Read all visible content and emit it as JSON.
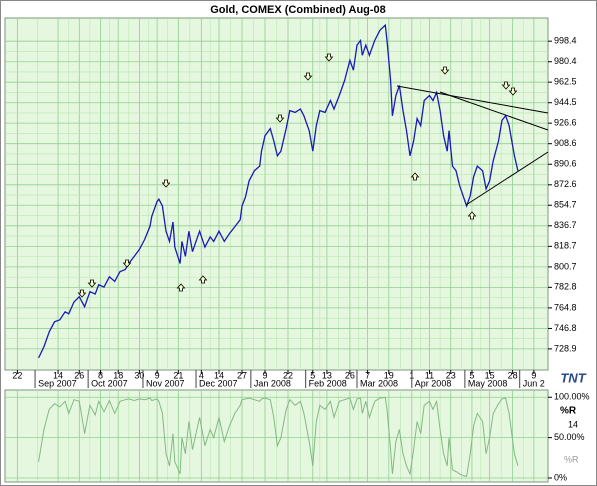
{
  "chart_data": [
    {
      "type": "line",
      "title": "Gold, COMEX (Combined) Aug-08",
      "logo": "TNT",
      "x": [
        "2007-09-03",
        "2007-09-06",
        "2007-09-09",
        "2007-09-12",
        "2007-09-15",
        "2007-09-18",
        "2007-09-20",
        "2007-09-23",
        "2007-09-26",
        "2007-09-29",
        "2007-10-02",
        "2007-10-05",
        "2007-10-07",
        "2007-10-10",
        "2007-10-13",
        "2007-10-16",
        "2007-10-19",
        "2007-10-22",
        "2007-10-24",
        "2007-10-27",
        "2007-10-30",
        "2007-11-02",
        "2007-11-05",
        "2007-11-06",
        "2007-11-09",
        "2007-11-10",
        "2007-11-12",
        "2007-11-14",
        "2007-11-16",
        "2007-11-18",
        "2007-11-19",
        "2007-11-22",
        "2007-11-23",
        "2007-11-25",
        "2007-11-27",
        "2007-11-29",
        "2007-12-01",
        "2007-12-03",
        "2007-12-06",
        "2007-12-09",
        "2007-12-11",
        "2007-12-14",
        "2007-12-17",
        "2007-12-20",
        "2007-12-23",
        "2007-12-26",
        "2007-12-27",
        "2007-12-29",
        "2007-12-31",
        "2008-01-03",
        "2008-01-06",
        "2008-01-07",
        "2008-01-09",
        "2008-01-12",
        "2008-01-14",
        "2008-01-16",
        "2008-01-18",
        "2008-01-21",
        "2008-01-23",
        "2008-01-26",
        "2008-01-29",
        "2008-01-31",
        "2008-02-03",
        "2008-02-05",
        "2008-02-07",
        "2008-02-09",
        "2008-02-12",
        "2008-02-15",
        "2008-02-17",
        "2008-02-20",
        "2008-02-23",
        "2008-02-26",
        "2008-02-28",
        "2008-03-01",
        "2008-03-03",
        "2008-03-04",
        "2008-03-06",
        "2008-03-08",
        "2008-03-11",
        "2008-03-14",
        "2008-03-17",
        "2008-03-18",
        "2008-03-20",
        "2008-03-21",
        "2008-03-23",
        "2008-03-25",
        "2008-03-27",
        "2008-03-29",
        "2008-03-31",
        "2008-04-02",
        "2008-04-04",
        "2008-04-06",
        "2008-04-08",
        "2008-04-11",
        "2008-04-13",
        "2008-04-15",
        "2008-04-17",
        "2008-04-19",
        "2008-04-21",
        "2008-04-22",
        "2008-04-24",
        "2008-04-26",
        "2008-04-28",
        "2008-04-30",
        "2008-05-02",
        "2008-05-04",
        "2008-05-06",
        "2008-05-08",
        "2008-05-11",
        "2008-05-13",
        "2008-05-15",
        "2008-05-17",
        "2008-05-20",
        "2008-05-22",
        "2008-05-24",
        "2008-05-26",
        "2008-05-29",
        "2008-05-31"
      ],
      "series": [
        {
          "color": "#1a1ab8",
          "values": [
            721,
            730.6,
            743.8,
            752.6,
            754.4,
            761.4,
            759.6,
            770,
            774.6,
            765.8,
            779,
            777,
            785,
            783,
            792,
            788,
            796.6,
            798.4,
            803.7,
            809.8,
            816,
            824.8,
            836.3,
            845,
            858,
            860,
            854,
            832,
            823,
            840,
            818,
            803.7,
            823,
            810,
            832,
            814,
            823,
            832,
            818,
            827,
            823,
            832,
            823,
            830,
            836,
            842,
            854,
            862,
            876,
            885,
            889,
            902,
            915.6,
            921.8,
            911,
            898,
            902,
            922,
            937.6,
            936,
            939,
            933,
            920,
            902,
            924.4,
            937.6,
            936,
            946.4,
            939,
            950.8,
            964,
            981.7,
            973,
            995,
            999,
            986,
            995,
            986,
            999,
            1008,
            1012.5,
            999,
            964,
            933,
            950.8,
            959.6,
            937.6,
            920,
            898,
            911,
            930.6,
            924.4,
            946.4,
            950.8,
            946.4,
            953.5,
            937.6,
            915.6,
            902,
            920,
            889,
            885,
            872,
            863,
            854,
            863,
            880,
            889,
            885,
            869,
            876,
            893.6,
            911,
            929,
            933.2,
            924.4,
            898,
            885
          ]
        }
      ],
      "xlim": [
        "2007-08-15",
        "2008-06-17"
      ],
      "xticks": [
        {
          "value": "2007-08-22",
          "label": "22"
        },
        {
          "value": "2007-09-14",
          "label": "14"
        },
        {
          "value": "2007-09-26",
          "label": "26"
        },
        {
          "value": "2007-10-08",
          "label": "8"
        },
        {
          "value": "2007-10-18",
          "label": "18"
        },
        {
          "value": "2007-10-30",
          "label": "30"
        },
        {
          "value": "2007-11-09",
          "label": "9"
        },
        {
          "value": "2007-11-21",
          "label": "21"
        },
        {
          "value": "2007-12-04",
          "label": "4"
        },
        {
          "value": "2007-12-14",
          "label": "14"
        },
        {
          "value": "2007-12-27",
          "label": "27"
        },
        {
          "value": "2008-01-09",
          "label": "9"
        },
        {
          "value": "2008-01-22",
          "label": "22"
        },
        {
          "value": "2008-02-05",
          "label": "5"
        },
        {
          "value": "2008-02-13",
          "label": "13"
        },
        {
          "value": "2008-02-26",
          "label": "26"
        },
        {
          "value": "2008-03-07",
          "label": "7"
        },
        {
          "value": "2008-03-19",
          "label": "19"
        },
        {
          "value": "2008-04-01",
          "label": "1"
        },
        {
          "value": "2008-04-11",
          "label": "11"
        },
        {
          "value": "2008-04-23",
          "label": "23"
        },
        {
          "value": "2008-05-05",
          "label": "5"
        },
        {
          "value": "2008-05-15",
          "label": "15"
        },
        {
          "value": "2008-05-28",
          "label": "28"
        },
        {
          "value": "2008-06-09",
          "label": "9"
        }
      ],
      "month_labels": [
        {
          "value": "2007-09-01",
          "label": "Sep 2007"
        },
        {
          "value": "2007-10-01",
          "label": "Oct 2007"
        },
        {
          "value": "2007-11-01",
          "label": "Nov 2007"
        },
        {
          "value": "2007-12-01",
          "label": "Dec 2007"
        },
        {
          "value": "2008-01-01",
          "label": "Jan 2008"
        },
        {
          "value": "2008-02-01",
          "label": "Feb 2008"
        },
        {
          "value": "2008-03-01",
          "label": "Mar 2008"
        },
        {
          "value": "2008-04-01",
          "label": "Apr 2008"
        },
        {
          "value": "2008-05-01",
          "label": "May 2008"
        },
        {
          "value": "2008-06-01",
          "label": "Jun 2"
        }
      ],
      "ylim": [
        710.4,
        1018.7
      ],
      "yticks": [
        728.9,
        746.8,
        764.8,
        782.8,
        800.7,
        818.7,
        836.7,
        854.7,
        872.6,
        890.6,
        908.6,
        926.6,
        944.5,
        962.5,
        980.4,
        998.4
      ],
      "grid": true
    },
    {
      "type": "line",
      "title": "%R",
      "period": "14",
      "x": [
        "2007-09-03",
        "2007-09-06",
        "2007-09-09",
        "2007-09-12",
        "2007-09-15",
        "2007-09-18",
        "2007-09-20",
        "2007-09-23",
        "2007-09-26",
        "2007-09-29",
        "2007-10-02",
        "2007-10-05",
        "2007-10-07",
        "2007-10-10",
        "2007-10-13",
        "2007-10-16",
        "2007-10-19",
        "2007-10-22",
        "2007-10-24",
        "2007-10-27",
        "2007-10-30",
        "2007-11-02",
        "2007-11-05",
        "2007-11-06",
        "2007-11-09",
        "2007-11-10",
        "2007-11-12",
        "2007-11-14",
        "2007-11-16",
        "2007-11-18",
        "2007-11-19",
        "2007-11-22",
        "2007-11-23",
        "2007-11-25",
        "2007-11-27",
        "2007-11-29",
        "2007-12-01",
        "2007-12-03",
        "2007-12-06",
        "2007-12-09",
        "2007-12-11",
        "2007-12-14",
        "2007-12-17",
        "2007-12-20",
        "2007-12-23",
        "2007-12-26",
        "2007-12-27",
        "2007-12-29",
        "2007-12-31",
        "2008-01-03",
        "2008-01-06",
        "2008-01-07",
        "2008-01-09",
        "2008-01-12",
        "2008-01-14",
        "2008-01-16",
        "2008-01-18",
        "2008-01-21",
        "2008-01-23",
        "2008-01-26",
        "2008-01-29",
        "2008-01-31",
        "2008-02-03",
        "2008-02-05",
        "2008-02-07",
        "2008-02-09",
        "2008-02-12",
        "2008-02-15",
        "2008-02-17",
        "2008-02-20",
        "2008-02-23",
        "2008-02-26",
        "2008-02-28",
        "2008-03-01",
        "2008-03-03",
        "2008-03-04",
        "2008-03-06",
        "2008-03-08",
        "2008-03-11",
        "2008-03-14",
        "2008-03-17",
        "2008-03-18",
        "2008-03-20",
        "2008-03-21",
        "2008-03-23",
        "2008-03-25",
        "2008-03-27",
        "2008-03-29",
        "2008-03-31",
        "2008-04-02",
        "2008-04-04",
        "2008-04-06",
        "2008-04-08",
        "2008-04-11",
        "2008-04-13",
        "2008-04-15",
        "2008-04-17",
        "2008-04-19",
        "2008-04-21",
        "2008-04-22",
        "2008-04-24",
        "2008-04-26",
        "2008-04-28",
        "2008-04-30",
        "2008-05-02",
        "2008-05-04",
        "2008-05-06",
        "2008-05-08",
        "2008-05-11",
        "2008-05-13",
        "2008-05-15",
        "2008-05-17",
        "2008-05-20",
        "2008-05-22",
        "2008-05-24",
        "2008-05-26",
        "2008-05-29",
        "2008-05-31"
      ],
      "series": [
        {
          "name": "%R",
          "color": "#84b884",
          "values": [
            20,
            60,
            85,
            92,
            88,
            95,
            80,
            97,
            95,
            55,
            90,
            78,
            95,
            82,
            96,
            80,
            95,
            97,
            98,
            96,
            98,
            97,
            99,
            96,
            98,
            95,
            80,
            30,
            15,
            55,
            20,
            5,
            50,
            30,
            70,
            35,
            55,
            75,
            40,
            60,
            50,
            75,
            45,
            65,
            80,
            90,
            97,
            98,
            99,
            97,
            95,
            98,
            99,
            97,
            75,
            40,
            50,
            85,
            97,
            90,
            95,
            80,
            45,
            15,
            70,
            90,
            85,
            95,
            75,
            95,
            97,
            99,
            85,
            98,
            99,
            80,
            95,
            75,
            95,
            99,
            100,
            85,
            35,
            5,
            45,
            60,
            30,
            15,
            5,
            35,
            70,
            55,
            90,
            95,
            85,
            95,
            60,
            30,
            15,
            50,
            10,
            8,
            5,
            3,
            2,
            30,
            65,
            80,
            70,
            30,
            50,
            80,
            92,
            98,
            99,
            80,
            30,
            15
          ]
        }
      ],
      "xlim": [
        "2007-08-15",
        "2008-06-17"
      ],
      "ylim": [
        -5,
        109
      ],
      "yticks": [
        {
          "value": 100,
          "label": "100.00%"
        },
        {
          "value": 50,
          "label": "50.00%"
        },
        {
          "value": 0,
          "label": "0%"
        }
      ],
      "grid": true
    }
  ]
}
